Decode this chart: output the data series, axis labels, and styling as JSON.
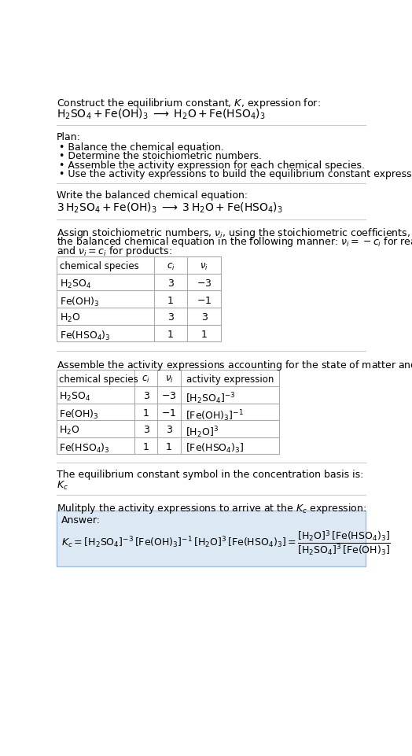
{
  "bg_color": "#ffffff",
  "text_color": "#000000",
  "title_line1": "Construct the equilibrium constant, $K$, expression for:",
  "reaction_unbalanced": "$\\mathrm{H_2SO_4 + Fe(OH)_3 \\;\\longrightarrow\\; H_2O + Fe(HSO_4)_3}$",
  "plan_header": "Plan:",
  "plan_items": [
    "• Balance the chemical equation.",
    "• Determine the stoichiometric numbers.",
    "• Assemble the activity expression for each chemical species.",
    "• Use the activity expressions to build the equilibrium constant expression."
  ],
  "balanced_header": "Write the balanced chemical equation:",
  "reaction_balanced": "$\\mathrm{3\\,H_2SO_4 + Fe(OH)_3 \\;\\longrightarrow\\; 3\\,H_2O + Fe(HSO_4)_3}$",
  "table1_cols": [
    "chemical species",
    "$c_i$",
    "$\\nu_i$"
  ],
  "table1_rows": [
    [
      "$\\mathrm{H_2SO_4}$",
      "3",
      "$-3$"
    ],
    [
      "$\\mathrm{Fe(OH)_3}$",
      "1",
      "$-1$"
    ],
    [
      "$\\mathrm{H_2O}$",
      "3",
      "3"
    ],
    [
      "$\\mathrm{Fe(HSO_4)_3}$",
      "1",
      "1"
    ]
  ],
  "activity_header": "Assemble the activity expressions accounting for the state of matter and $\\nu_i$:",
  "table2_cols": [
    "chemical species",
    "$c_i$",
    "$\\nu_i$",
    "activity expression"
  ],
  "table2_rows": [
    [
      "$\\mathrm{H_2SO_4}$",
      "3",
      "$-3$",
      "$[\\mathrm{H_2SO_4}]^{-3}$"
    ],
    [
      "$\\mathrm{Fe(OH)_3}$",
      "1",
      "$-1$",
      "$[\\mathrm{Fe(OH)_3}]^{-1}$"
    ],
    [
      "$\\mathrm{H_2O}$",
      "3",
      "3",
      "$[\\mathrm{H_2O}]^{3}$"
    ],
    [
      "$\\mathrm{Fe(HSO_4)_3}$",
      "1",
      "1",
      "$[\\mathrm{Fe(HSO_4)_3}]$"
    ]
  ],
  "kc_header": "The equilibrium constant symbol in the concentration basis is:",
  "kc_symbol": "$K_c$",
  "multiply_header": "Mulitply the activity expressions to arrive at the $K_c$ expression:",
  "answer_label": "Answer:",
  "answer_box_color": "#dce9f5",
  "answer_box_border": "#a0bcd8",
  "table_line_color": "#aaaaaa",
  "font_size": 9,
  "small_font": 8
}
